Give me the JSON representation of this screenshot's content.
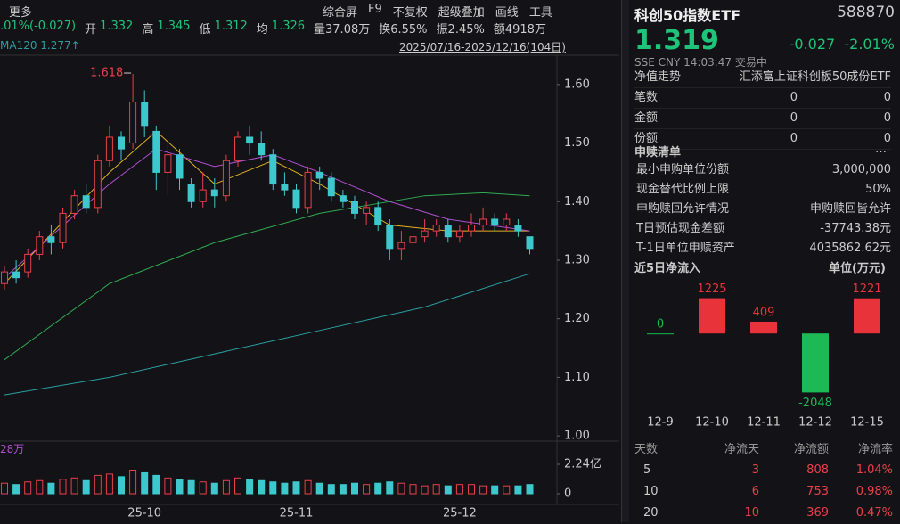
{
  "toolbar": {
    "more": "更多",
    "menu": [
      "综合屏",
      "F9",
      "不复权",
      "超级叠加",
      "画线",
      "工具"
    ]
  },
  "stats": [
    ".01%(-0.027)",
    "开",
    "1.332",
    "高",
    "1.345",
    "低",
    "1.312",
    "均",
    "1.326",
    "量37.08万",
    "换6.55%",
    "振2.45%",
    "额4918万"
  ],
  "ma_label": "MA120",
  "ma_value": "1.277↑",
  "range": "2025/07/16-2025/12/16(104日)",
  "vol_label": "28万",
  "peak_label": "1.618",
  "kline": {
    "type": "candlestick",
    "ylim": [
      0.991,
      1.65
    ],
    "yticks": [
      {
        "value": 1.6,
        "label": "1.60"
      },
      {
        "value": 1.5,
        "label": "1.50"
      },
      {
        "value": 1.4,
        "label": "1.40"
      },
      {
        "value": 1.3,
        "label": "1.30"
      },
      {
        "value": 1.2,
        "label": "1.20"
      },
      {
        "value": 1.1,
        "label": "1.10"
      },
      {
        "value": 1.0,
        "label": "1.00"
      }
    ],
    "up_color": "#e8414a",
    "down_color": "#3cc8cc",
    "candles": [
      [
        1.26,
        1.28,
        1.29,
        1.25
      ],
      [
        1.28,
        1.27,
        1.3,
        1.26
      ],
      [
        1.28,
        1.31,
        1.32,
        1.27
      ],
      [
        1.31,
        1.34,
        1.35,
        1.3
      ],
      [
        1.34,
        1.33,
        1.36,
        1.31
      ],
      [
        1.33,
        1.38,
        1.39,
        1.32
      ],
      [
        1.38,
        1.41,
        1.42,
        1.37
      ],
      [
        1.41,
        1.39,
        1.43,
        1.38
      ],
      [
        1.39,
        1.47,
        1.48,
        1.38
      ],
      [
        1.47,
        1.51,
        1.53,
        1.46
      ],
      [
        1.51,
        1.49,
        1.52,
        1.47
      ],
      [
        1.5,
        1.57,
        1.618,
        1.49
      ],
      [
        1.57,
        1.53,
        1.59,
        1.51
      ],
      [
        1.52,
        1.45,
        1.53,
        1.42
      ],
      [
        1.45,
        1.48,
        1.5,
        1.41
      ],
      [
        1.48,
        1.44,
        1.49,
        1.42
      ],
      [
        1.43,
        1.4,
        1.44,
        1.39
      ],
      [
        1.4,
        1.42,
        1.45,
        1.39
      ],
      [
        1.42,
        1.41,
        1.44,
        1.39
      ],
      [
        1.41,
        1.47,
        1.48,
        1.4
      ],
      [
        1.47,
        1.51,
        1.52,
        1.46
      ],
      [
        1.51,
        1.5,
        1.53,
        1.48
      ],
      [
        1.5,
        1.48,
        1.52,
        1.47
      ],
      [
        1.48,
        1.43,
        1.49,
        1.42
      ],
      [
        1.43,
        1.42,
        1.45,
        1.41
      ],
      [
        1.42,
        1.39,
        1.43,
        1.38
      ],
      [
        1.39,
        1.45,
        1.46,
        1.38
      ],
      [
        1.45,
        1.44,
        1.46,
        1.42
      ],
      [
        1.44,
        1.41,
        1.45,
        1.4
      ],
      [
        1.41,
        1.4,
        1.42,
        1.39
      ],
      [
        1.4,
        1.38,
        1.41,
        1.37
      ],
      [
        1.38,
        1.39,
        1.4,
        1.36
      ],
      [
        1.39,
        1.36,
        1.4,
        1.35
      ],
      [
        1.36,
        1.32,
        1.37,
        1.3
      ],
      [
        1.32,
        1.33,
        1.35,
        1.3
      ],
      [
        1.33,
        1.34,
        1.36,
        1.32
      ],
      [
        1.34,
        1.35,
        1.37,
        1.33
      ],
      [
        1.35,
        1.36,
        1.37,
        1.34
      ],
      [
        1.36,
        1.34,
        1.37,
        1.33
      ],
      [
        1.34,
        1.35,
        1.36,
        1.33
      ],
      [
        1.35,
        1.36,
        1.38,
        1.34
      ],
      [
        1.36,
        1.37,
        1.39,
        1.35
      ],
      [
        1.37,
        1.36,
        1.38,
        1.35
      ],
      [
        1.36,
        1.37,
        1.38,
        1.35
      ],
      [
        1.36,
        1.35,
        1.37,
        1.34
      ],
      [
        1.34,
        1.32,
        1.34,
        1.31
      ]
    ],
    "ma": [
      {
        "color": "#e0b020",
        "x": [
          0,
          9,
          13,
          18,
          23,
          27,
          33,
          38,
          45
        ],
        "values": [
          1.26,
          1.45,
          1.52,
          1.43,
          1.47,
          1.43,
          1.36,
          1.35,
          1.35
        ]
      },
      {
        "color": "#b050d0",
        "x": [
          0,
          9,
          13,
          18,
          23,
          27,
          33,
          38,
          45
        ],
        "values": [
          1.27,
          1.43,
          1.49,
          1.46,
          1.48,
          1.45,
          1.4,
          1.37,
          1.35
        ]
      },
      {
        "color": "#2faa50",
        "x": [
          0,
          9,
          18,
          27,
          36,
          41,
          45
        ],
        "values": [
          1.13,
          1.26,
          1.33,
          1.38,
          1.41,
          1.415,
          1.41
        ]
      },
      {
        "color": "#2a9fa0",
        "x": [
          0,
          9,
          18,
          27,
          36,
          45
        ],
        "values": [
          1.07,
          1.1,
          1.14,
          1.18,
          1.22,
          1.277
        ]
      }
    ],
    "xlabels": [
      {
        "index": 12,
        "label": "25-10"
      },
      {
        "index": 25,
        "label": "25-11"
      },
      {
        "index": 39,
        "label": "25-12"
      }
    ],
    "vol_ylim": [
      0,
      2.24
    ],
    "vol_yticks": [
      {
        "value": 2.24,
        "label": "2.24亿"
      },
      0
    ],
    "volume": [
      0.8,
      0.7,
      0.9,
      1.0,
      0.8,
      1.1,
      1.2,
      1.0,
      1.4,
      1.5,
      1.3,
      1.8,
      1.6,
      1.4,
      1.2,
      1.1,
      1.0,
      0.9,
      0.8,
      1.0,
      1.2,
      1.1,
      1.0,
      0.9,
      0.8,
      0.9,
      1.0,
      0.8,
      0.7,
      0.7,
      0.8,
      0.7,
      0.8,
      0.9,
      0.8,
      0.7,
      0.6,
      0.7,
      0.6,
      0.7,
      0.7,
      0.6,
      0.6,
      0.6,
      0.6,
      0.7
    ]
  },
  "quote": {
    "name": "科创50指数ETF",
    "code": "588870",
    "price": "1.319",
    "change": "-0.027",
    "pct": "-2.01%",
    "meta": "SSE  CNY  14:03:47  交易中"
  },
  "info": [
    [
      "净值走势",
      "汇添富上证科创板50成份ETF"
    ],
    [
      "笔数",
      "0",
      "0"
    ],
    [
      "金额",
      "0",
      "0"
    ],
    [
      "份额",
      "0",
      "0"
    ]
  ],
  "redeem_title": "申赎清单",
  "redeem": [
    [
      "最小申购单位份额",
      "3,000,000"
    ],
    [
      "现金替代比例上限",
      "50%"
    ],
    [
      "申购赎回允许情况",
      "申购赎回皆允许"
    ],
    [
      "T日预估现金差额",
      "-37743.38元"
    ],
    [
      "T-1日单位申赎资产",
      "4035862.62元"
    ]
  ],
  "flow": {
    "type": "bar",
    "title": "近5日净流入",
    "unit": "单位(万元)",
    "categories": [
      "12-9",
      "12-10",
      "12-11",
      "12-12",
      "12-15"
    ],
    "values": [
      0,
      1225,
      409,
      -2048,
      1221
    ],
    "ylim": [
      -2500,
      1800
    ],
    "up_color": "#e8333a",
    "down_color": "#1db954"
  },
  "table": {
    "header": [
      "天数",
      "净流天",
      "净流额",
      "净流率"
    ],
    "rows": [
      [
        "5",
        "3",
        "808",
        "1.04%"
      ],
      [
        "10",
        "6",
        "753",
        "0.98%"
      ],
      [
        "20",
        "10",
        "369",
        "0.47%"
      ]
    ]
  }
}
